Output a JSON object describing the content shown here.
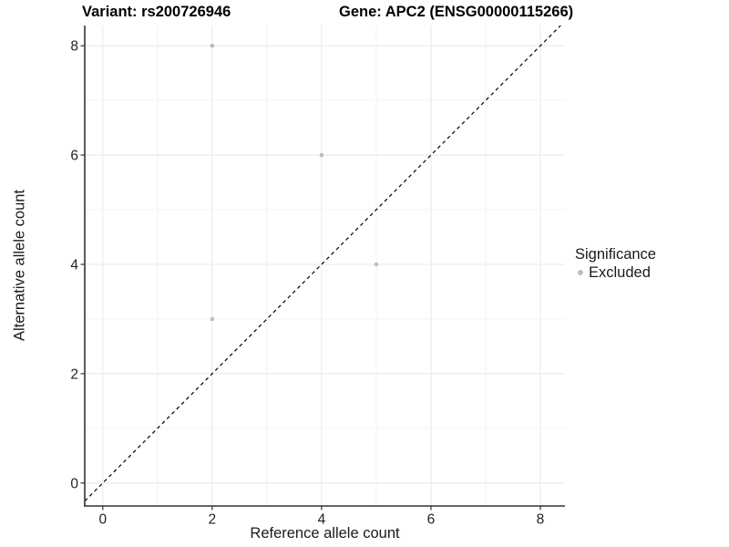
{
  "header": {
    "title_left": "Variant: rs200726946",
    "title_right": "Gene: APC2 (ENSG00000115266)"
  },
  "axes": {
    "x_label": "Reference allele count",
    "y_label": "Alternative allele count"
  },
  "legend": {
    "title": "Significance",
    "items": [
      {
        "label": "Excluded",
        "color": "#bdbdbd"
      }
    ]
  },
  "chart_data": {
    "type": "scatter",
    "title": "Variant: rs200726946 | Gene: APC2 (ENSG00000115266)",
    "xlabel": "Reference allele count",
    "ylabel": "Alternative allele count",
    "x_ticks": [
      0,
      2,
      4,
      6,
      8
    ],
    "y_ticks": [
      0,
      2,
      4,
      6,
      8
    ],
    "x_minor_ticks": [
      1,
      3,
      5,
      7
    ],
    "y_minor_ticks": [
      1,
      3,
      5,
      7
    ],
    "xlim": [
      -0.33,
      8.45
    ],
    "ylim": [
      -0.42,
      8.37
    ],
    "grid": true,
    "legend_position": "right",
    "series": [
      {
        "name": "Excluded",
        "color": "#bdbdbd",
        "points": [
          [
            2,
            8
          ],
          [
            4,
            6
          ],
          [
            5,
            4
          ],
          [
            2,
            3
          ]
        ]
      }
    ],
    "reference_line": {
      "kind": "abline",
      "slope": 1,
      "intercept": 0,
      "style": "dashed",
      "color": "#000000"
    },
    "colors": {
      "point": "#bdbdbd",
      "grid_major": "#e8e8e8",
      "grid_minor": "#f3f3f3",
      "axis_line": "#333333",
      "tick_text": "#1f1f1f",
      "dashed_line": "#000000",
      "background": "#ffffff"
    }
  }
}
